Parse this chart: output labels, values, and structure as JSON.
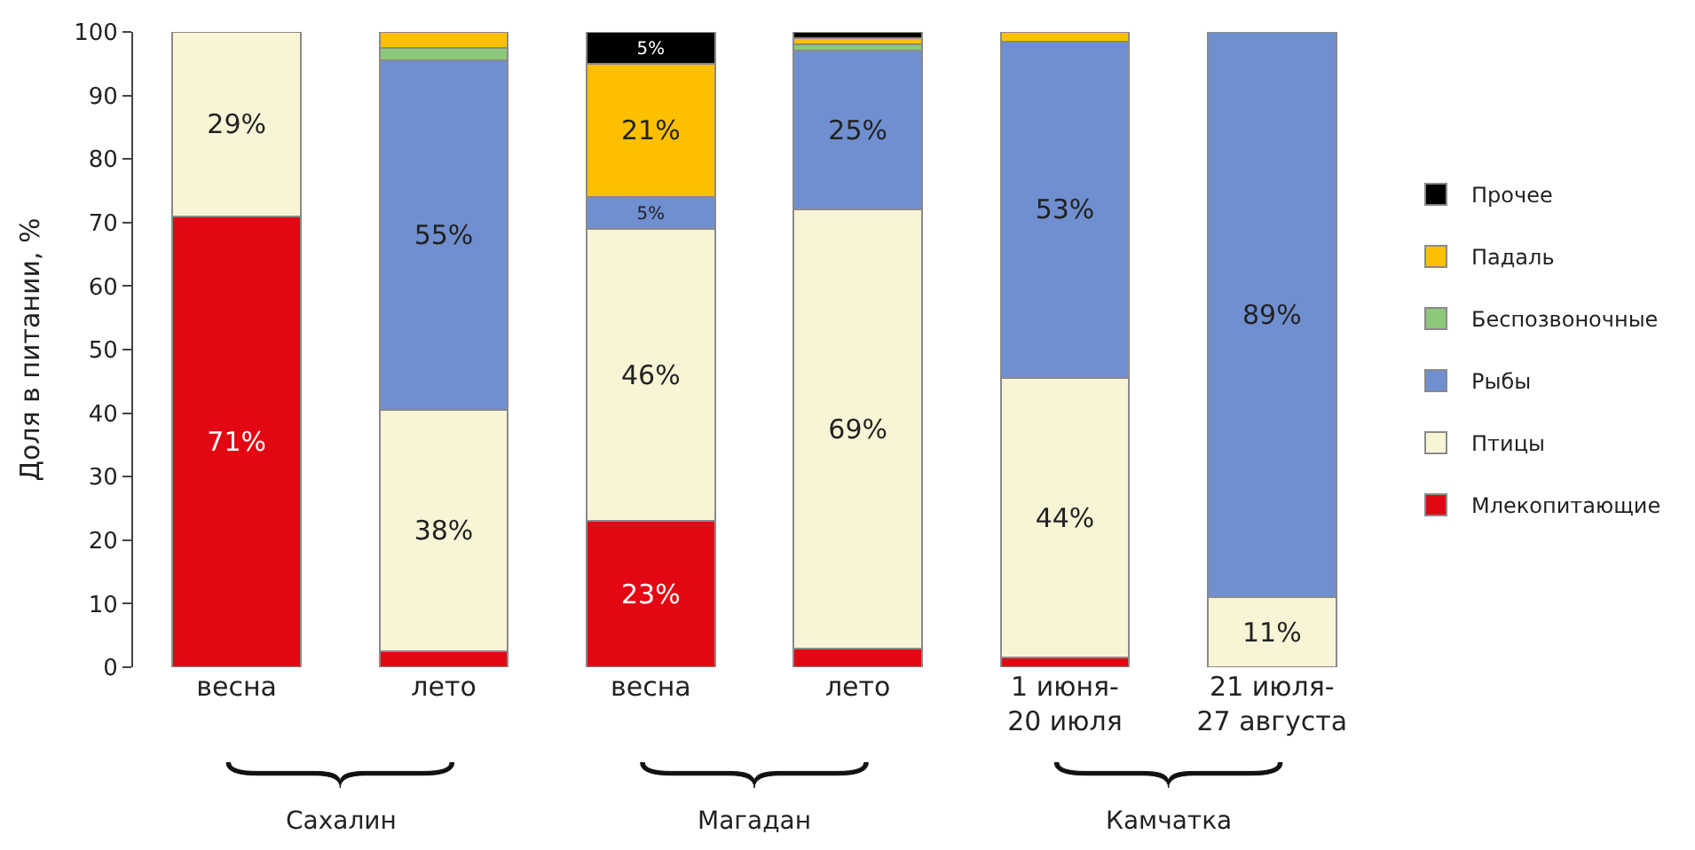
{
  "chart_data": {
    "type": "bar",
    "stacked": true,
    "ylabel": "Доля в питании, %",
    "categories": [
      "весна",
      "лето",
      "весна",
      "лето",
      "1 июня-\n20 июля",
      "21 июля-\n27 августа"
    ],
    "series": [
      {
        "name": "Млекопитающие",
        "color": "#e30613",
        "values": [
          71,
          2.5,
          23,
          3,
          1.5,
          null
        ],
        "value_labels": [
          "71%",
          null,
          "23%",
          null,
          null,
          null
        ]
      },
      {
        "name": "Птицы",
        "color": "#f8f5d6",
        "values": [
          29,
          38,
          46,
          69,
          44,
          11
        ],
        "value_labels": [
          "29%",
          "38%",
          "46%",
          "69%",
          "44%",
          "11%"
        ]
      },
      {
        "name": "Рыбы",
        "color": "#6f8fd0",
        "values": [
          null,
          55,
          5,
          25,
          53,
          89
        ],
        "value_labels": [
          null,
          "55%",
          "5%",
          "25%",
          "53%",
          "89%"
        ]
      },
      {
        "name": "Беспозвоночные",
        "color": "#8cc97a",
        "values": [
          null,
          2,
          null,
          1,
          null,
          null
        ]
      },
      {
        "name": "Падаль",
        "color": "#fcc000",
        "values": [
          null,
          2.5,
          21,
          1,
          1.5,
          null
        ],
        "value_labels": [
          null,
          null,
          "21%",
          null,
          null,
          null
        ]
      },
      {
        "name": "Прочее",
        "color": "#000000",
        "values": [
          null,
          null,
          5,
          1,
          null,
          null
        ],
        "value_labels": [
          null,
          null,
          "5%",
          null,
          null,
          null
        ]
      }
    ],
    "ylim": [
      0,
      100
    ],
    "yticks": [
      0,
      10,
      20,
      30,
      40,
      50,
      60,
      70,
      80,
      90,
      100
    ],
    "legend": "right",
    "annotations": [
      "Сахалин",
      "Магадан",
      "Камчатка"
    ]
  }
}
